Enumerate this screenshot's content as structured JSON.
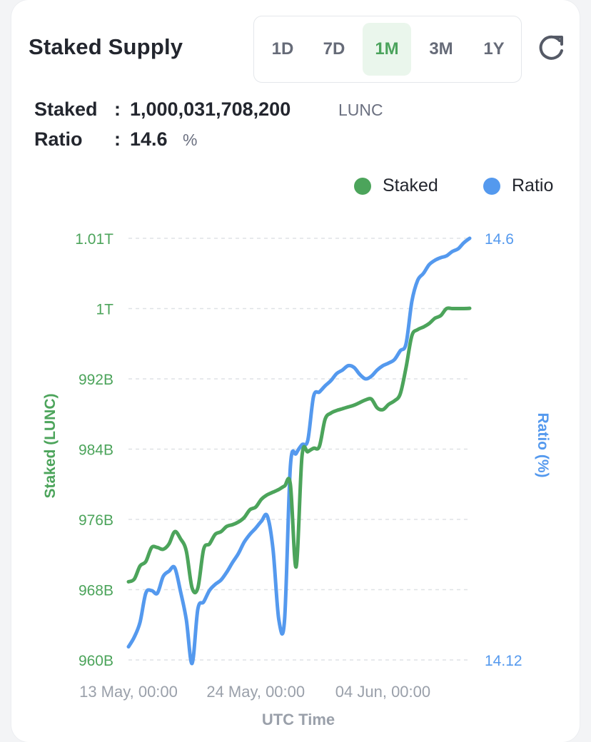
{
  "title": "Staked Supply",
  "ranges": [
    "1D",
    "7D",
    "1M",
    "3M",
    "1Y"
  ],
  "active_range": "1M",
  "stats": {
    "staked_label": "Staked",
    "staked_value": "1,000,031,708,200",
    "staked_unit": "LUNC",
    "ratio_label": "Ratio",
    "ratio_value": "14.6",
    "ratio_unit": "%"
  },
  "colors": {
    "staked": "#4ca45b",
    "ratio": "#5499ee",
    "active_range_bg": "#eaf6ec"
  },
  "icons": {
    "refresh": "refresh-icon"
  },
  "chart_data": {
    "type": "line",
    "xlabel": "UTC Time",
    "ylabel_left": "Staked (LUNC)",
    "ylabel_right": "Ratio (%)",
    "x_tick_labels": [
      "13 May, 00:00",
      "24 May, 00:00",
      "04 Jun, 00:00"
    ],
    "x_range_days": [
      0,
      29.5
    ],
    "x_ticks_days": [
      0,
      11,
      22
    ],
    "ylim_left": [
      960,
      1008
    ],
    "y_ticks_left": [
      {
        "value": 960,
        "label": "960B"
      },
      {
        "value": 968,
        "label": "968B"
      },
      {
        "value": 976,
        "label": "976B"
      },
      {
        "value": 984,
        "label": "984B"
      },
      {
        "value": 992,
        "label": "992B"
      },
      {
        "value": 1000,
        "label": "1T"
      },
      {
        "value": 1008,
        "label": "1.01T"
      }
    ],
    "ylim_right": [
      14.12,
      14.6
    ],
    "y_ticks_right": [
      {
        "value": 14.12,
        "label": "14.12"
      },
      {
        "value": 14.6,
        "label": "14.6"
      }
    ],
    "grid": true,
    "legend_position": "top-right",
    "series": [
      {
        "name": "Staked",
        "axis": "left",
        "x": [
          0,
          0.5,
          1,
          1.5,
          2,
          2.5,
          3,
          3.5,
          4,
          4.5,
          5,
          5.5,
          6,
          6.5,
          7,
          7.5,
          8,
          8.5,
          9,
          9.5,
          10,
          10.5,
          11,
          11.5,
          12,
          12.5,
          13,
          13.5,
          14,
          14.5,
          15,
          15.5,
          16,
          16.5,
          17,
          17.5,
          18,
          18.5,
          19,
          19.5,
          20,
          20.5,
          21,
          21.5,
          22,
          22.5,
          23,
          23.5,
          24,
          24.5,
          25,
          25.5,
          26,
          26.5,
          27,
          27.5,
          28,
          28.5,
          29,
          29.5
        ],
        "values": [
          968.9,
          969.2,
          970.7,
          971.2,
          972.8,
          972.8,
          972.6,
          973.2,
          974.6,
          973.8,
          972.4,
          968.2,
          968.2,
          972.6,
          973.2,
          974.3,
          974.6,
          975.2,
          975.4,
          975.7,
          976.2,
          977.1,
          977.4,
          978.3,
          978.8,
          979.1,
          979.4,
          979.8,
          980.0,
          970.6,
          983.2,
          983.7,
          984.1,
          984.3,
          987.4,
          988.1,
          988.4,
          988.6,
          988.8,
          989.0,
          989.3,
          989.6,
          989.7,
          988.7,
          988.5,
          989.1,
          989.5,
          990.3,
          993.3,
          996.9,
          997.6,
          997.9,
          998.3,
          998.9,
          999.2,
          1000.0,
          1000.0,
          1000.0,
          1000.0,
          1000.03
        ]
      },
      {
        "name": "Ratio",
        "axis": "right",
        "x": [
          0,
          0.5,
          1,
          1.5,
          2,
          2.5,
          3,
          3.5,
          4,
          4.5,
          5,
          5.5,
          6,
          6.5,
          7,
          7.5,
          8,
          8.5,
          9,
          9.5,
          10,
          10.5,
          11,
          11.5,
          12,
          12.5,
          13,
          13.5,
          14,
          14.5,
          15,
          15.5,
          16,
          16.5,
          17,
          17.5,
          18,
          18.5,
          19,
          19.5,
          20,
          20.5,
          21,
          21.5,
          22,
          22.5,
          23,
          23.5,
          24,
          24.5,
          25,
          25.5,
          26,
          26.5,
          27,
          27.5,
          28,
          28.5,
          29,
          29.5
        ],
        "values": [
          14.135,
          14.146,
          14.163,
          14.196,
          14.199,
          14.196,
          14.215,
          14.221,
          14.225,
          14.198,
          14.166,
          14.116,
          14.178,
          14.186,
          14.199,
          14.206,
          14.211,
          14.22,
          14.231,
          14.241,
          14.254,
          14.263,
          14.27,
          14.278,
          14.284,
          14.246,
          14.166,
          14.166,
          14.34,
          14.355,
          14.365,
          14.37,
          14.42,
          14.425,
          14.432,
          14.438,
          14.446,
          14.45,
          14.455,
          14.453,
          14.445,
          14.44,
          14.443,
          14.45,
          14.455,
          14.458,
          14.462,
          14.472,
          14.48,
          14.528,
          14.552,
          14.56,
          14.57,
          14.575,
          14.578,
          14.58,
          14.585,
          14.588,
          14.595,
          14.6
        ]
      }
    ]
  }
}
